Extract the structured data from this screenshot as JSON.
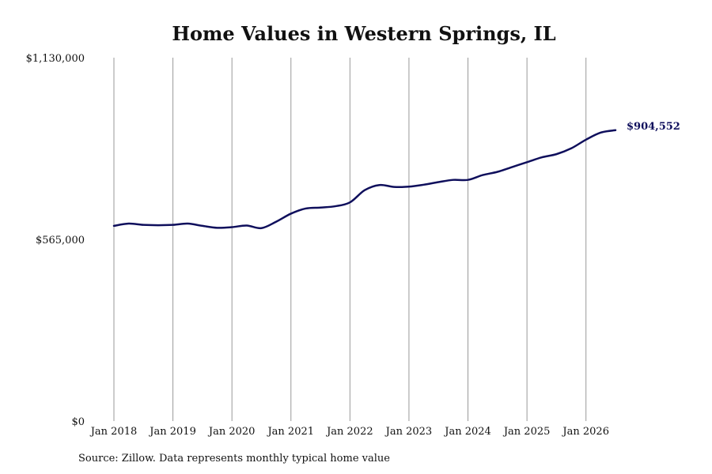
{
  "chart_data": {
    "type": "line",
    "title": "Home Values in Western Springs, IL",
    "xlabel": "",
    "ylabel": "",
    "ylim": [
      0,
      1130000
    ],
    "y_ticks": [
      {
        "value": 0,
        "label": "$0"
      },
      {
        "value": 565000,
        "label": "$565,000"
      },
      {
        "value": 1130000,
        "label": "$1,130,000"
      }
    ],
    "x_ticks": [
      {
        "value": 2018.0,
        "label": "Jan 2018"
      },
      {
        "value": 2019.0,
        "label": "Jan 2019"
      },
      {
        "value": 2020.0,
        "label": "Jan 2020"
      },
      {
        "value": 2021.0,
        "label": "Jan 2021"
      },
      {
        "value": 2022.0,
        "label": "Jan 2022"
      },
      {
        "value": 2023.0,
        "label": "Jan 2023"
      },
      {
        "value": 2024.0,
        "label": "Jan 2024"
      },
      {
        "value": 2025.0,
        "label": "Jan 2025"
      },
      {
        "value": 2026.0,
        "label": "Jan 2026"
      }
    ],
    "xlim": [
      2018.0,
      2026.5
    ],
    "grid": {
      "vertical": true,
      "horizontal": false
    },
    "line_color": "#0f0f5c",
    "grid_color": "#9a9a9a",
    "end_label": "$904,552",
    "series": [
      {
        "x": [
          2018.0,
          2018.25,
          2018.5,
          2018.75,
          2019.0,
          2019.25,
          2019.5,
          2019.75,
          2020.0,
          2020.25,
          2020.5,
          2020.75,
          2021.0,
          2021.25,
          2021.5,
          2021.75,
          2022.0,
          2022.25,
          2022.5,
          2022.75,
          2023.0,
          2023.25,
          2023.5,
          2023.75,
          2024.0,
          2024.25,
          2024.5,
          2024.75,
          2025.0,
          2025.25,
          2025.5,
          2025.75,
          2026.0,
          2026.25,
          2026.5
        ],
        "values": [
          607000,
          614000,
          610000,
          609000,
          610000,
          614000,
          607000,
          601000,
          603000,
          608000,
          600000,
          620000,
          645000,
          661000,
          664000,
          668000,
          680000,
          718000,
          734000,
          728000,
          729000,
          735000,
          743000,
          750000,
          750000,
          765000,
          775000,
          790000,
          805000,
          820000,
          830000,
          848000,
          875000,
          897000,
          904552
        ]
      }
    ]
  },
  "footer": {
    "source_text": "Source: Zillow. Data represents monthly typical home value"
  }
}
